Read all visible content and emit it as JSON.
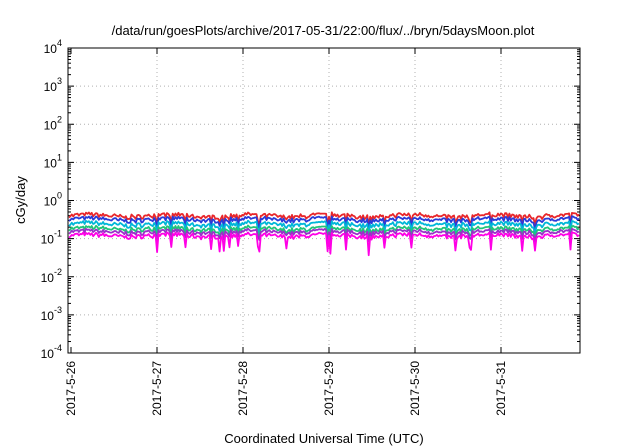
{
  "chart_data": {
    "type": "line",
    "title": "/data/run/goesPlots/archive/2017-05-31/22:00/flux/../bryn/5daysMoon.plot",
    "xlabel": "Coordinated Universal Time (UTC)",
    "ylabel": "cGy/day",
    "yscale": "log",
    "ylim": [
      0.0001,
      10000
    ],
    "xlim": [
      "2017-05-26",
      "2017-06-01"
    ],
    "grid": true,
    "x_tick_labels": [
      "2017-5-26",
      "2017-5-27",
      "2017-5-28",
      "2017-5-29",
      "2017-5-30",
      "2017-5-31"
    ],
    "y_ticks": [
      {
        "value": 0.0001,
        "base": "10",
        "exp": "-4"
      },
      {
        "value": 0.001,
        "base": "10",
        "exp": "-3"
      },
      {
        "value": 0.01,
        "base": "10",
        "exp": "-2"
      },
      {
        "value": 0.1,
        "base": "10",
        "exp": "-1"
      },
      {
        "value": 1,
        "base": "10",
        "exp": "0"
      },
      {
        "value": 10,
        "base": "10",
        "exp": "1"
      },
      {
        "value": 100,
        "base": "10",
        "exp": "2"
      },
      {
        "value": 1000,
        "base": "10",
        "exp": "3"
      },
      {
        "value": 10000,
        "base": "10",
        "exp": "4"
      }
    ],
    "series": [
      {
        "color": "#e8262b",
        "level": 0.4,
        "dip": 0.75
      },
      {
        "color": "#2a3bd9",
        "level": 0.32,
        "dip": 0.72
      },
      {
        "color": "#00b7d8",
        "level": 0.24,
        "dip": 0.72
      },
      {
        "color": "#22c47a",
        "level": 0.18,
        "dip": 0.72
      },
      {
        "color": "#9b30c9",
        "level": 0.15,
        "dip": 0.72
      },
      {
        "color": "#ff00e6",
        "level": 0.12,
        "dip": 0.6
      }
    ]
  }
}
